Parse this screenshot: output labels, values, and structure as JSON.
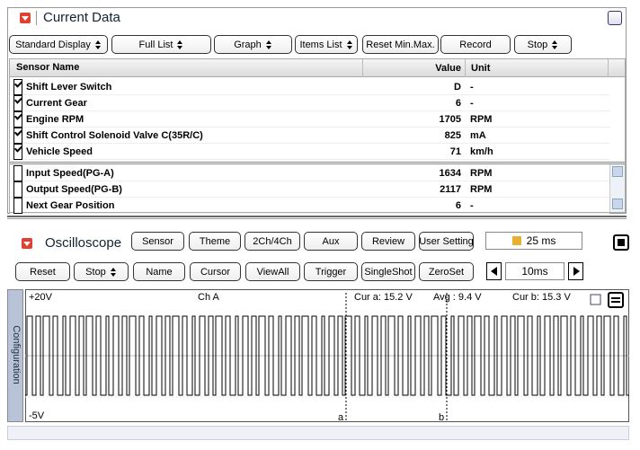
{
  "current_data": {
    "title": "Current Data",
    "toolbar": [
      {
        "label": "Standard Display",
        "dropdown": true
      },
      {
        "label": "Full List",
        "dropdown": true
      },
      {
        "label": "Graph",
        "dropdown": true
      },
      {
        "label": "Items List",
        "dropdown": true
      },
      {
        "label": "Reset Min.Max.",
        "dropdown": false
      },
      {
        "label": "Record",
        "dropdown": false
      },
      {
        "label": "Stop",
        "dropdown": true
      }
    ],
    "columns": [
      "Sensor Name",
      "Value",
      "Unit"
    ],
    "rows": [
      {
        "checked": true,
        "name": "Shift Lever Switch",
        "value": "D",
        "unit": "-"
      },
      {
        "checked": true,
        "name": "Current Gear",
        "value": 6,
        "unit": "-"
      },
      {
        "checked": true,
        "name": "Engine RPM",
        "value": 1705,
        "unit": "RPM"
      },
      {
        "checked": true,
        "name": "Shift Control Solenoid Valve C(35R/C)",
        "value": 825,
        "unit": "mA"
      },
      {
        "checked": true,
        "name": "Vehicle Speed",
        "value": 71,
        "unit": "km/h"
      },
      {
        "checked": false,
        "name": "Input Speed(PG-A)",
        "value": 1634,
        "unit": "RPM"
      },
      {
        "checked": false,
        "name": "Output Speed(PG-B)",
        "value": 2117,
        "unit": "RPM"
      },
      {
        "checked": false,
        "name": "Next Gear Position",
        "value": 6,
        "unit": "-"
      }
    ]
  },
  "oscilloscope": {
    "title": "Oscilloscope",
    "buttons_top": [
      "Sensor",
      "Theme",
      "2Ch/4Ch",
      "Aux",
      "Review",
      "User Setting"
    ],
    "time_display": "25 ms",
    "buttons_bottom": [
      {
        "label": "Reset",
        "dropdown": false
      },
      {
        "label": "Stop",
        "dropdown": true
      },
      {
        "label": "Name",
        "dropdown": false
      },
      {
        "label": "Cursor",
        "dropdown": false
      },
      {
        "label": "ViewAll",
        "dropdown": false
      },
      {
        "label": "Trigger",
        "dropdown": false
      },
      {
        "label": "SingleShot",
        "dropdown": false
      },
      {
        "label": "ZeroSet",
        "dropdown": false
      }
    ],
    "timebase": "10ms",
    "side_tab": "Configuration",
    "scale_top": "+20V",
    "scale_bottom": "-5V",
    "channel": "Ch A",
    "cursor_a": "Cur a: 15.2 V",
    "average": "Avg : 9.4 V",
    "cursor_b": "Cur b: 15.3 V",
    "cursor_a_label": "a",
    "cursor_b_label": "b"
  }
}
